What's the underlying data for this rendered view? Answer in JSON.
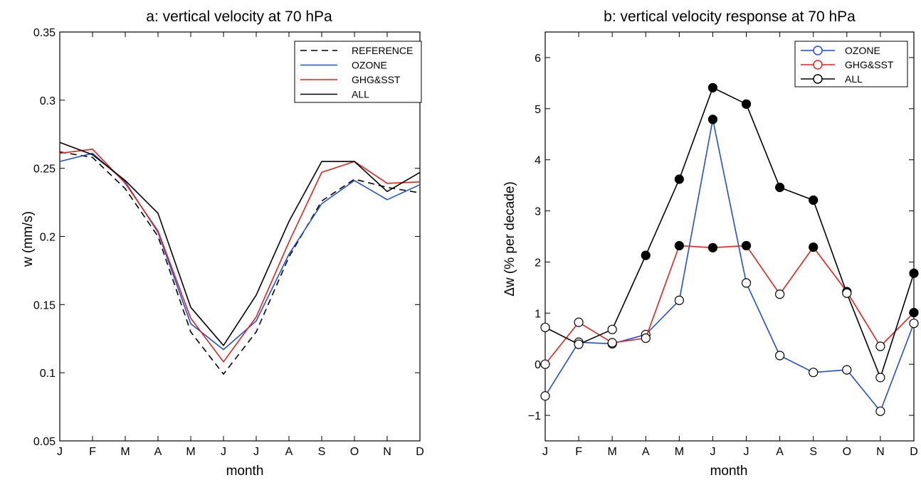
{
  "chart_data": [
    {
      "type": "line",
      "title": "a:  vertical velocity at 70 hPa",
      "xlabel": "month",
      "ylabel": "w (mm/s)",
      "categories": [
        "J",
        "F",
        "M",
        "A",
        "M",
        "J",
        "J",
        "A",
        "S",
        "O",
        "N",
        "D"
      ],
      "ylim": [
        0.05,
        0.35
      ],
      "yticks": [
        "0.05",
        "0.1",
        "0.15",
        "0.2",
        "0.25",
        "0.3",
        "0.35"
      ],
      "legend_position": "top-right",
      "grid": false,
      "series": [
        {
          "name": "REFERENCE",
          "color": "#000000",
          "dashed": true,
          "values": [
            0.262,
            0.258,
            0.235,
            0.2,
            0.13,
            0.099,
            0.13,
            0.185,
            0.226,
            0.242,
            0.236,
            0.232
          ]
        },
        {
          "name": "OZONE",
          "color": "#1f4fdc",
          "dashed": false,
          "values": [
            0.255,
            0.261,
            0.24,
            0.203,
            0.136,
            0.117,
            0.138,
            0.187,
            0.224,
            0.241,
            0.227,
            0.238
          ]
        },
        {
          "name": "GHG&SST",
          "color": "#e8201a",
          "dashed": false,
          "values": [
            0.261,
            0.264,
            0.239,
            0.204,
            0.14,
            0.108,
            0.141,
            0.196,
            0.247,
            0.255,
            0.239,
            0.24
          ]
        },
        {
          "name": "ALL",
          "color": "#000000",
          "dashed": false,
          "values": [
            0.269,
            0.26,
            0.241,
            0.217,
            0.148,
            0.12,
            0.157,
            0.211,
            0.255,
            0.255,
            0.233,
            0.247
          ]
        }
      ]
    },
    {
      "type": "line",
      "title": "b: vertical velocity response at 70 hPa",
      "xlabel": "month",
      "ylabel": "Δw (% per decade)",
      "categories": [
        "J",
        "F",
        "M",
        "A",
        "M",
        "J",
        "J",
        "A",
        "S",
        "O",
        "N",
        "D"
      ],
      "ylim": [
        -1.5,
        6.5
      ],
      "yticks": [
        "−1",
        "0",
        "1",
        "2",
        "3",
        "4",
        "5",
        "6"
      ],
      "legend_position": "top-right",
      "grid": false,
      "markers": "circle; filled = significant, open = not significant",
      "series": [
        {
          "name": "OZONE",
          "color": "#1f4fdc",
          "values": [
            -0.62,
            0.43,
            0.4,
            0.58,
            1.25,
            4.79,
            1.59,
            0.17,
            -0.16,
            -0.11,
            -0.92,
            0.8
          ],
          "filled": [
            false,
            false,
            false,
            false,
            false,
            true,
            false,
            false,
            false,
            false,
            false,
            false
          ]
        },
        {
          "name": "GHG&SST",
          "color": "#e8201a",
          "values": [
            0.0,
            0.82,
            0.42,
            0.51,
            2.32,
            2.28,
            2.32,
            1.37,
            2.29,
            1.42,
            0.35,
            1.01
          ],
          "filled": [
            false,
            false,
            false,
            false,
            true,
            true,
            true,
            false,
            true,
            true,
            false,
            true
          ]
        },
        {
          "name": "ALL",
          "color": "#000000",
          "values": [
            0.72,
            0.39,
            0.68,
            2.13,
            3.62,
            5.41,
            5.09,
            3.46,
            3.21,
            1.39,
            -0.26,
            1.78
          ],
          "filled": [
            false,
            false,
            false,
            true,
            true,
            true,
            true,
            true,
            true,
            false,
            false,
            true
          ]
        }
      ]
    }
  ]
}
